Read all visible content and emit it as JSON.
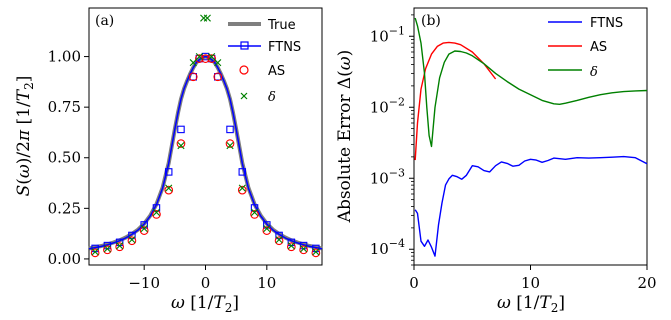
{
  "chart_data": [
    {
      "type": "line",
      "panel_label": "(a)",
      "xlabel": "ω [1/T₂]",
      "ylabel": "S(ω)/2π [1/T₂]",
      "xlim": [
        -19,
        19
      ],
      "ylim": [
        -0.03,
        1.24
      ],
      "xticks": [
        -10,
        0,
        10
      ],
      "xtick_labels": [
        "−10",
        "0",
        "10"
      ],
      "yticks": [
        0.0,
        0.25,
        0.5,
        0.75,
        1.0
      ],
      "ytick_labels": [
        "0.00",
        "0.25",
        "0.50",
        "0.75",
        "1.00"
      ],
      "grid": false,
      "legend_position": "top-right",
      "series": [
        {
          "name": "True",
          "style": "line",
          "color": "#7f7f7f",
          "x": [
            -19,
            -18,
            -17,
            -16,
            -15,
            -14,
            -13,
            -12,
            -11,
            -10,
            -9,
            -8,
            -7,
            -6,
            -5,
            -4.5,
            -4,
            -3.5,
            -3,
            -2.5,
            -2,
            -1.5,
            -1,
            -0.5,
            0,
            0.5,
            1,
            1.5,
            2,
            2.5,
            3,
            3.5,
            4,
            4.5,
            5,
            6,
            7,
            8,
            9,
            10,
            11,
            12,
            13,
            14,
            15,
            16,
            17,
            18,
            19
          ],
          "y": [
            0.052,
            0.058,
            0.064,
            0.072,
            0.081,
            0.092,
            0.106,
            0.123,
            0.145,
            0.174,
            0.214,
            0.27,
            0.352,
            0.474,
            0.64,
            0.72,
            0.79,
            0.84,
            0.88,
            0.915,
            0.945,
            0.97,
            0.985,
            0.996,
            1.0,
            0.996,
            0.985,
            0.97,
            0.945,
            0.915,
            0.88,
            0.84,
            0.79,
            0.72,
            0.64,
            0.474,
            0.352,
            0.27,
            0.214,
            0.174,
            0.145,
            0.123,
            0.106,
            0.092,
            0.081,
            0.072,
            0.064,
            0.058,
            0.052
          ]
        },
        {
          "name": "FTNS",
          "style": "line+square",
          "color": "#0000ff",
          "x": [
            -19,
            -18,
            -17,
            -16,
            -15,
            -14,
            -13,
            -12,
            -11,
            -10,
            -9,
            -8,
            -7,
            -6,
            -5,
            -4.5,
            -4,
            -3.5,
            -3,
            -2.5,
            -2,
            -1.5,
            -1,
            -0.5,
            0,
            0.5,
            1,
            1.5,
            2,
            2.5,
            3,
            3.5,
            4,
            4.5,
            5,
            6,
            7,
            8,
            9,
            10,
            11,
            12,
            13,
            14,
            15,
            16,
            17,
            18,
            19
          ],
          "y": [
            0.05,
            0.056,
            0.062,
            0.07,
            0.079,
            0.09,
            0.104,
            0.121,
            0.143,
            0.172,
            0.212,
            0.268,
            0.35,
            0.472,
            0.64,
            0.72,
            0.79,
            0.84,
            0.88,
            0.915,
            0.945,
            0.97,
            0.985,
            0.996,
            1.0,
            0.996,
            0.985,
            0.97,
            0.945,
            0.915,
            0.88,
            0.84,
            0.79,
            0.72,
            0.64,
            0.472,
            0.35,
            0.268,
            0.212,
            0.172,
            0.143,
            0.121,
            0.104,
            0.09,
            0.079,
            0.07,
            0.062,
            0.056,
            0.05
          ],
          "marker_x": [
            -18,
            -16,
            -14,
            -12,
            -10,
            -8,
            -6,
            -4,
            -2,
            -1,
            0,
            1,
            2,
            4,
            6,
            8,
            10,
            12,
            14,
            16,
            18
          ],
          "marker_y": [
            0.052,
            0.066,
            0.082,
            0.116,
            0.168,
            0.252,
            0.43,
            0.64,
            0.9,
            0.99,
            1.0,
            0.99,
            0.9,
            0.64,
            0.43,
            0.252,
            0.168,
            0.116,
            0.082,
            0.066,
            0.052
          ]
        },
        {
          "name": "AS",
          "style": "circle",
          "color": "#ff0000",
          "x": [
            -18,
            -16,
            -14,
            -12,
            -10,
            -8,
            -6,
            -4,
            -2,
            -1,
            0,
            1,
            2,
            4,
            6,
            8,
            10,
            12,
            14,
            16,
            18
          ],
          "y": [
            0.03,
            0.045,
            0.06,
            0.09,
            0.14,
            0.22,
            0.34,
            0.57,
            0.9,
            0.99,
            0.99,
            0.99,
            0.9,
            0.57,
            0.34,
            0.22,
            0.14,
            0.09,
            0.06,
            0.045,
            0.03
          ]
        },
        {
          "name": "δ",
          "style": "x",
          "color": "#008000",
          "x": [
            -18,
            -16,
            -14,
            -12,
            -10,
            -8,
            -6,
            -4,
            -2,
            -1,
            -0.3,
            0.3,
            1,
            2,
            4,
            6,
            8,
            10,
            12,
            14,
            16,
            18
          ],
          "y": [
            0.035,
            0.05,
            0.065,
            0.095,
            0.15,
            0.23,
            0.35,
            0.56,
            0.97,
            1.0,
            1.19,
            1.19,
            1.0,
            0.97,
            0.56,
            0.35,
            0.23,
            0.15,
            0.095,
            0.065,
            0.05,
            0.035
          ]
        }
      ]
    },
    {
      "type": "line",
      "panel_label": "(b)",
      "xlabel": "ω [1/T₂]",
      "ylabel": "Absolute Error Δ(ω)",
      "xlim": [
        0,
        20
      ],
      "ylim": [
        6e-05,
        0.25
      ],
      "yscale": "log",
      "xticks": [
        0,
        10,
        20
      ],
      "xtick_labels": [
        "0",
        "10",
        "20"
      ],
      "yticks": [
        0.0001,
        0.001,
        0.01,
        0.1
      ],
      "grid": false,
      "legend_position": "top-right",
      "series": [
        {
          "name": "FTNS",
          "color": "#0000ff",
          "x": [
            0.1,
            0.3,
            0.6,
            0.9,
            1.2,
            1.5,
            1.8,
            2.1,
            2.4,
            2.7,
            3.0,
            3.3,
            3.7,
            4.1,
            4.5,
            5.0,
            5.5,
            6.0,
            6.5,
            7.0,
            7.5,
            8.0,
            8.5,
            9.0,
            9.5,
            10.0,
            10.5,
            11.0,
            11.5,
            12.0,
            13.0,
            14.0,
            15.0,
            16.0,
            17.0,
            18.0,
            19.0,
            20.0
          ],
          "y": [
            0.00036,
            0.00032,
            0.00013,
            0.00011,
            0.000135,
            0.000107,
            8e-05,
            0.00022,
            0.00045,
            0.0008,
            0.00098,
            0.0011,
            0.00105,
            0.00097,
            0.0011,
            0.0015,
            0.00145,
            0.00128,
            0.00123,
            0.0015,
            0.0017,
            0.00162,
            0.00148,
            0.00152,
            0.00175,
            0.00185,
            0.0018,
            0.00168,
            0.00178,
            0.00192,
            0.00185,
            0.00195,
            0.00192,
            0.00195,
            0.00198,
            0.00202,
            0.00195,
            0.0016
          ]
        },
        {
          "name": "AS",
          "color": "#ff0000",
          "x": [
            0.1,
            0.3,
            0.6,
            1.0,
            1.5,
            2.0,
            2.5,
            3.0,
            3.5,
            4.0,
            5.0,
            6.0,
            7.0
          ],
          "y": [
            0.0018,
            0.006,
            0.018,
            0.035,
            0.056,
            0.072,
            0.08,
            0.082,
            0.08,
            0.076,
            0.06,
            0.041,
            0.025
          ]
        },
        {
          "name": "δ",
          "color": "#008000",
          "x": [
            0.1,
            0.3,
            0.6,
            0.9,
            1.1,
            1.3,
            1.5,
            1.8,
            2.2,
            2.6,
            3.0,
            3.5,
            4.0,
            4.5,
            5.0,
            6.0,
            7.0,
            8.0,
            9.0,
            10.0,
            11.0,
            12.0,
            12.5,
            13.0,
            14.0,
            15.0,
            16.0,
            17.0,
            18.0,
            19.0,
            20.0
          ],
          "y": [
            0.18,
            0.14,
            0.08,
            0.03,
            0.01,
            0.004,
            0.0028,
            0.01,
            0.026,
            0.043,
            0.056,
            0.062,
            0.061,
            0.058,
            0.053,
            0.041,
            0.03,
            0.023,
            0.018,
            0.015,
            0.0125,
            0.0112,
            0.011,
            0.0114,
            0.0125,
            0.0138,
            0.015,
            0.016,
            0.0166,
            0.017,
            0.0172
          ]
        }
      ]
    }
  ]
}
